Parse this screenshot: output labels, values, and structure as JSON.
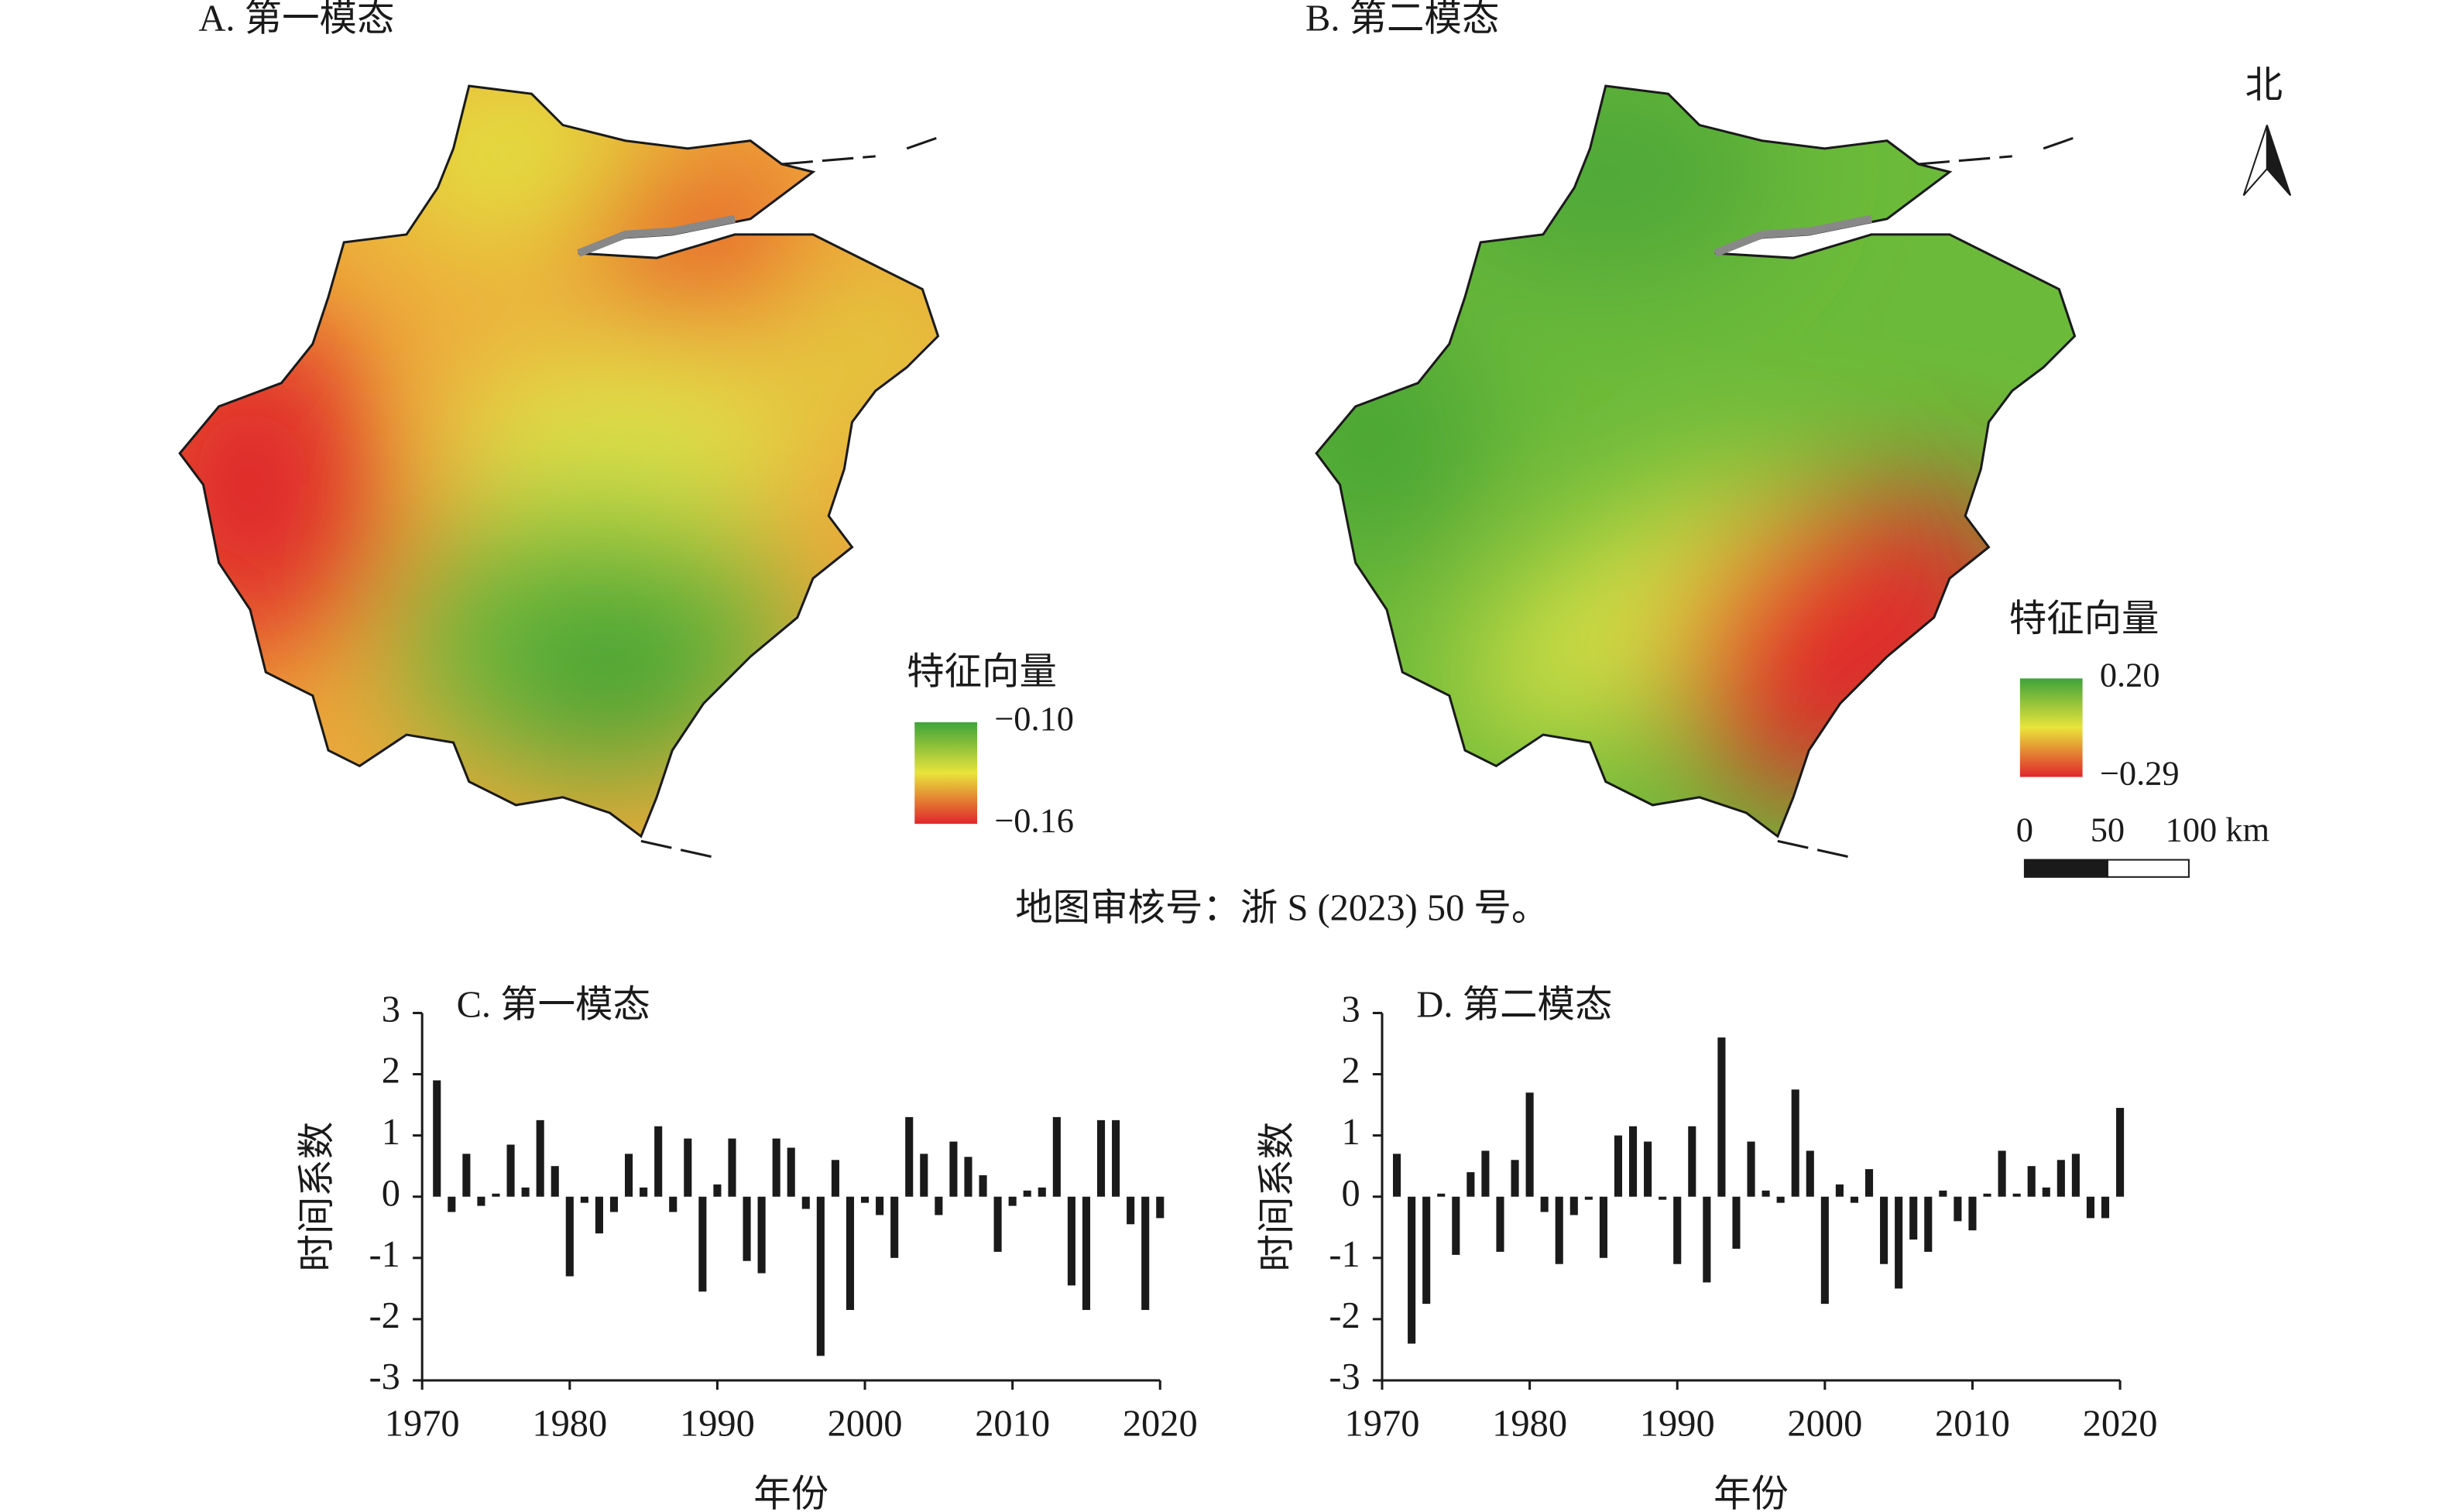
{
  "maps": [
    {
      "title": "A. 第一模态",
      "legend_title": "特征向量",
      "legend_labels": [
        "−0.10",
        "−0.16"
      ]
    },
    {
      "title": "B. 第二模态",
      "legend_title": "特征向量",
      "legend_labels": [
        "0.20",
        "−0.29"
      ]
    }
  ],
  "scale_bar_labels": [
    "0",
    "50",
    "100 km"
  ],
  "north_label": "北",
  "approval_note": "地图审核号：浙 S (2023) 50 号。",
  "chart_data": [
    {
      "type": "bar",
      "title": "C. 第一模态",
      "xlabel": "年份",
      "ylabel": "时间系数",
      "color": "#1a1a1a",
      "x": [
        1971,
        1972,
        1973,
        1974,
        1975,
        1976,
        1977,
        1978,
        1979,
        1980,
        1981,
        1982,
        1983,
        1984,
        1985,
        1986,
        1987,
        1988,
        1989,
        1990,
        1991,
        1992,
        1993,
        1994,
        1995,
        1996,
        1997,
        1998,
        1999,
        2000,
        2001,
        2002,
        2003,
        2004,
        2005,
        2006,
        2007,
        2008,
        2009,
        2010,
        2011,
        2012,
        2013,
        2014,
        2015,
        2016,
        2017,
        2018,
        2019,
        2020
      ],
      "values": [
        1.9,
        -0.25,
        0.7,
        -0.15,
        0.05,
        0.85,
        0.15,
        1.25,
        0.5,
        -1.3,
        -0.1,
        -0.6,
        -0.25,
        0.7,
        0.15,
        1.15,
        -0.25,
        0.95,
        -1.55,
        0.2,
        0.95,
        -1.05,
        -1.25,
        0.95,
        0.8,
        -0.2,
        -2.6,
        0.6,
        -1.85,
        -0.1,
        -0.3,
        -1.0,
        1.3,
        0.7,
        -0.3,
        0.9,
        0.65,
        0.35,
        -0.9,
        -0.15,
        0.1,
        0.15,
        1.3,
        -1.45,
        -1.85,
        1.25,
        1.25,
        -0.45,
        -1.85,
        -0.35
      ],
      "xlim": [
        1970,
        2020
      ],
      "xticks": [
        1970,
        1980,
        1990,
        2000,
        2010,
        2020
      ],
      "ylim": [
        -3,
        3
      ],
      "yticks": [
        -3,
        -2,
        -1,
        0,
        1,
        2,
        3
      ]
    },
    {
      "type": "bar",
      "title": "D. 第二模态",
      "xlabel": "年份",
      "ylabel": "时间系数",
      "color": "#1a1a1a",
      "x": [
        1971,
        1972,
        1973,
        1974,
        1975,
        1976,
        1977,
        1978,
        1979,
        1980,
        1981,
        1982,
        1983,
        1984,
        1985,
        1986,
        1987,
        1988,
        1989,
        1990,
        1991,
        1992,
        1993,
        1994,
        1995,
        1996,
        1997,
        1998,
        1999,
        2000,
        2001,
        2002,
        2003,
        2004,
        2005,
        2006,
        2007,
        2008,
        2009,
        2010,
        2011,
        2012,
        2013,
        2014,
        2015,
        2016,
        2017,
        2018,
        2019,
        2020
      ],
      "values": [
        0.7,
        -2.4,
        -1.75,
        0.05,
        -0.95,
        0.4,
        0.75,
        -0.9,
        0.6,
        1.7,
        -0.25,
        -1.1,
        -0.3,
        -0.05,
        -1.0,
        1.0,
        1.15,
        0.9,
        -0.05,
        -1.1,
        1.15,
        -1.4,
        2.6,
        -0.85,
        0.9,
        0.1,
        -0.1,
        1.75,
        0.75,
        -1.75,
        0.2,
        -0.1,
        0.45,
        -1.1,
        -1.5,
        -0.7,
        -0.9,
        0.1,
        -0.4,
        -0.55,
        0.05,
        0.75,
        0.05,
        0.5,
        0.15,
        0.6,
        0.7,
        -0.35,
        -0.35,
        1.45
      ],
      "xlim": [
        1970,
        2020
      ],
      "xticks": [
        1970,
        1980,
        1990,
        2000,
        2010,
        2020
      ],
      "ylim": [
        -3,
        3
      ],
      "yticks": [
        -3,
        -2,
        -1,
        0,
        1,
        2,
        3
      ]
    }
  ]
}
